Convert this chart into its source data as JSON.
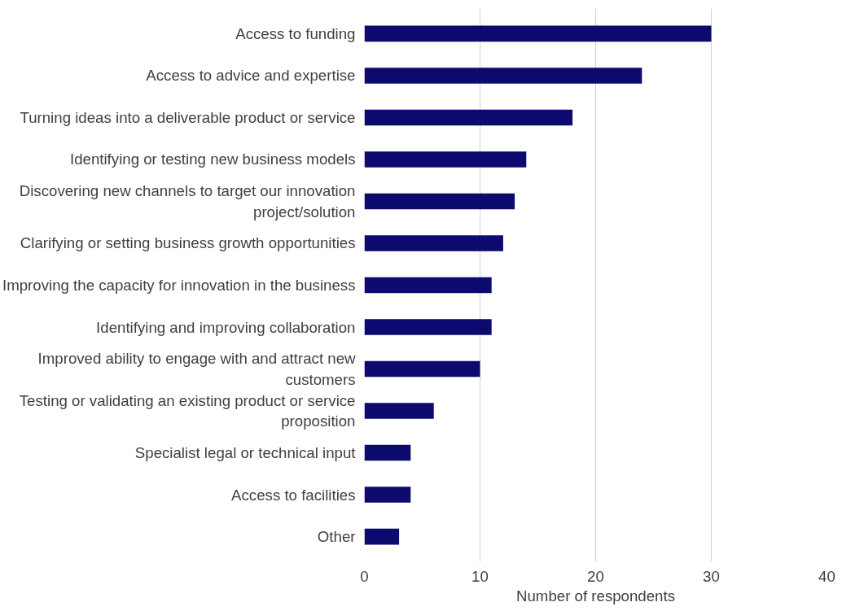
{
  "chart_data": {
    "type": "bar",
    "orientation": "horizontal",
    "xlabel": "Number of respondents",
    "categories": [
      "Access to funding",
      "Access to advice and expertise",
      "Turning ideas into a deliverable product or service",
      "Identifying or testing new business models",
      "Discovering new channels to target our innovation project/solution",
      "Clarifying or setting business growth opportunities",
      "Improving the capacity for innovation in the business",
      "Identifying and improving collaboration",
      "Improved ability to engage with and attract new customers",
      "Testing or validating an existing product or service proposition",
      "Specialist legal or technical input",
      "Access to facilities",
      "Other"
    ],
    "values": [
      30,
      24,
      18,
      14,
      13,
      12,
      11,
      11,
      10,
      6,
      4,
      4,
      3
    ],
    "color": "#0c0a6e",
    "xlim": [
      0,
      40
    ],
    "xticks": [
      0,
      10,
      20,
      30,
      40
    ],
    "grid": "x"
  }
}
